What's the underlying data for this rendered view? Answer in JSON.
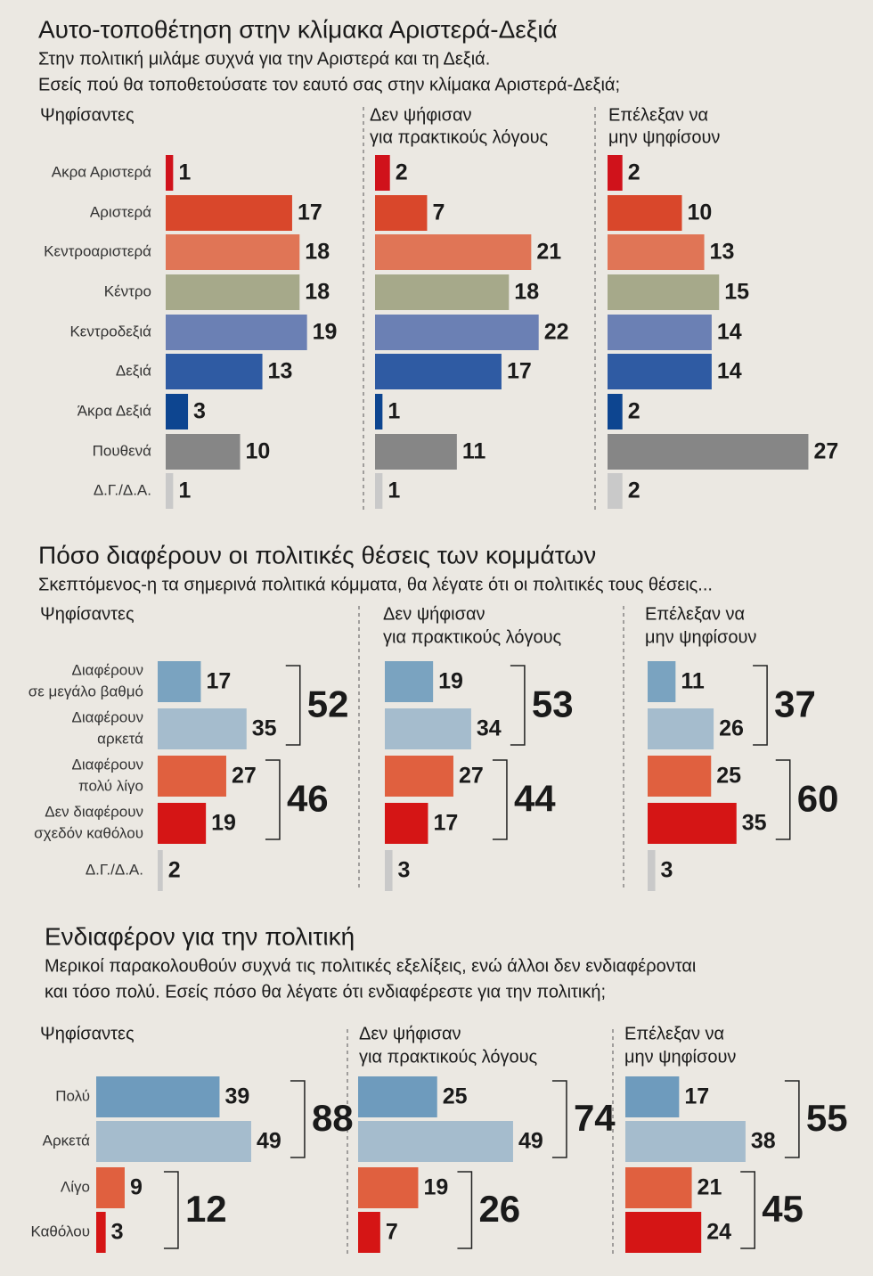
{
  "sections": [
    {
      "title": "Αυτο-τοποθέτηση στην κλίμακα Αριστερά-Δεξιά",
      "subtitle": [
        "Στην πολιτική μιλάμε συχνά για την Αριστερά και τη Δεξιά.",
        "Εσείς πού θα τοποθετούσατε τον εαυτό σας στην κλίμακα Αριστερά-Δεξιά;"
      ],
      "categories": [
        [
          "Ακρα Αριστερά"
        ],
        [
          "Αριστερά"
        ],
        [
          "Κεντροαριστερά"
        ],
        [
          "Κέντρο"
        ],
        [
          "Κεντροδεξιά"
        ],
        [
          "Δεξιά"
        ],
        [
          "Άκρα Δεξιά"
        ],
        [
          "Πουθενά"
        ],
        [
          "Δ.Γ./Δ.Α."
        ]
      ],
      "colors": [
        "#d0121b",
        "#d9472b",
        "#e07556",
        "#a6a98a",
        "#6b80b4",
        "#2f5ba3",
        "#0d4590",
        "#868686",
        "#c9c9c9"
      ],
      "panels": [
        {
          "label": [
            "Ψηφίσαντες"
          ],
          "values": [
            1,
            17,
            18,
            18,
            19,
            13,
            3,
            10,
            1
          ]
        },
        {
          "label": [
            "Δεν ψήφισαν",
            "για πρακτικούς λόγους"
          ],
          "values": [
            2,
            7,
            21,
            18,
            22,
            17,
            1,
            11,
            1
          ]
        },
        {
          "label": [
            "Επέλεξαν να",
            "μην ψηφίσουν"
          ],
          "values": [
            2,
            10,
            13,
            15,
            14,
            14,
            2,
            27,
            2
          ]
        }
      ]
    },
    {
      "title": "Πόσο διαφέρουν οι πολιτικές θέσεις των κομμάτων",
      "subtitle": [
        "Σκεπτόμενος-η τα σημερινά πολιτικά κόμματα, θα λέγατε ότι οι πολιτικές τους θέσεις..."
      ],
      "categories": [
        [
          "Διαφέρουν",
          "σε μεγάλο βαθμό"
        ],
        [
          "Διαφέρουν",
          "αρκετά"
        ],
        [
          "Διαφέρουν",
          "πολύ λίγο"
        ],
        [
          "Δεν διαφέρουν",
          "σχεδόν καθόλου"
        ],
        [
          "Δ.Γ./Δ.Α."
        ]
      ],
      "colors": [
        "#7aa3c0",
        "#a5bccd",
        "#e0603f",
        "#d51515",
        "#c9c9c9"
      ],
      "panels": [
        {
          "label": [
            "Ψηφίσαντες"
          ],
          "values": [
            17,
            35,
            27,
            19,
            2
          ],
          "totals": [
            52,
            46
          ]
        },
        {
          "label": [
            "Δεν ψήφισαν",
            "για πρακτικούς λόγους"
          ],
          "values": [
            19,
            34,
            27,
            17,
            3
          ],
          "totals": [
            53,
            44
          ]
        },
        {
          "label": [
            "Επέλεξαν να",
            "μην ψηφίσουν"
          ],
          "values": [
            11,
            26,
            25,
            35,
            3
          ],
          "totals": [
            37,
            60
          ]
        }
      ]
    },
    {
      "title": "Ενδιαφέρον για την πολιτική",
      "subtitle": [
        "Μερικοί παρακολουθούν συχνά τις πολιτικές εξελίξεις, ενώ άλλοι δεν ενδιαφέρονται",
        "και τόσο πολύ. Εσείς πόσο θα λέγατε ότι ενδιαφέρεστε για την πολιτική;"
      ],
      "categories": [
        [
          "Πολύ"
        ],
        [
          "Αρκετά"
        ],
        [
          "Λίγο"
        ],
        [
          "Καθόλου"
        ]
      ],
      "colors": [
        "#6e9bbd",
        "#a5bccd",
        "#e0603f",
        "#d51515"
      ],
      "panels": [
        {
          "label": [
            "Ψηφίσαντες"
          ],
          "values": [
            39,
            49,
            9,
            3
          ],
          "totals": [
            88,
            12
          ]
        },
        {
          "label": [
            "Δεν ψήφισαν",
            "για πρακτικούς λόγους"
          ],
          "values": [
            25,
            49,
            19,
            7
          ],
          "totals": [
            74,
            26
          ]
        },
        {
          "label": [
            "Επέλεξαν να",
            "μην ψηφίσουν"
          ],
          "values": [
            17,
            38,
            21,
            24
          ],
          "totals": [
            55,
            45
          ]
        }
      ]
    }
  ]
}
